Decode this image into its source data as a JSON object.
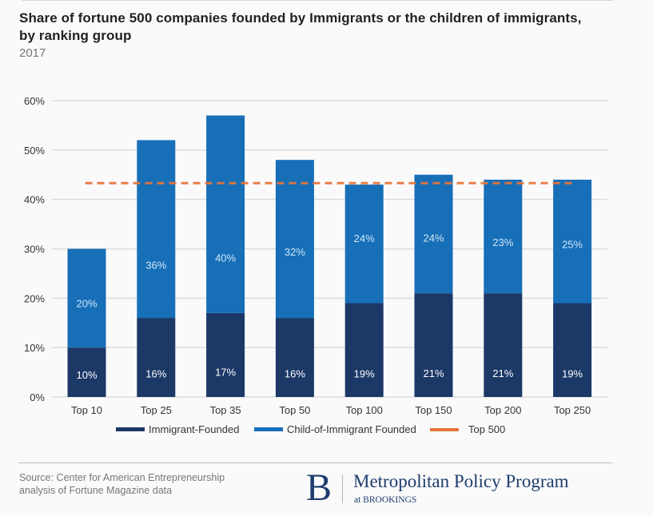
{
  "header": {
    "title": "Share of fortune 500 companies founded by Immigrants or the children of immigrants, by ranking group",
    "subtitle": "2017"
  },
  "chart_data": {
    "type": "bar",
    "stacked": true,
    "title": "Share of fortune 500 companies founded by Immigrants or the children of immigrants, by ranking group",
    "subtitle": "2017",
    "xlabel": "",
    "ylabel": "",
    "categories": [
      "Top 10",
      "Top 25",
      "Top 35",
      "Top 50",
      "Top 100",
      "Top 150",
      "Top 200",
      "Top 250"
    ],
    "series": [
      {
        "name": "Immigrant-Founded",
        "color": "#1b3867",
        "values": [
          10,
          16,
          17,
          16,
          19,
          21,
          21,
          19
        ],
        "labels": [
          "10%",
          "16%",
          "17%",
          "16%",
          "19%",
          "21%",
          "21%",
          "19%"
        ]
      },
      {
        "name": "Child-of-Immigrant Founded",
        "color": "#176fb8",
        "values": [
          20,
          36,
          40,
          32,
          24,
          24,
          23,
          25
        ],
        "labels": [
          "20%",
          "36%",
          "40%",
          "32%",
          "24%",
          "24%",
          "23%",
          "25%"
        ]
      }
    ],
    "reference_line": {
      "name": "Top 500",
      "value": 43.3,
      "color": "#e8743b",
      "style": "dashed"
    },
    "ylim": [
      0,
      60
    ],
    "yticks": [
      0,
      10,
      20,
      30,
      40,
      50,
      60
    ],
    "ytick_labels": [
      "0%",
      "10%",
      "20%",
      "30%",
      "40%",
      "50%",
      "60%"
    ],
    "grid": true,
    "legend_position": "bottom-center"
  },
  "legend": {
    "items": [
      {
        "label": "Immigrant-Founded",
        "color": "#1b3867"
      },
      {
        "label": "Child-of-Immigrant Founded",
        "color": "#176fb8"
      },
      {
        "label": "Top 500",
        "color": "#e8743b"
      }
    ]
  },
  "footer": {
    "source_line1": "Source: Center for American Entrepreneurship",
    "source_line2": "analysis of Fortune Magazine data",
    "logo_letter": "B",
    "program_name": "Metropolitan Policy Program",
    "program_sub": "at BROOKINGS"
  }
}
